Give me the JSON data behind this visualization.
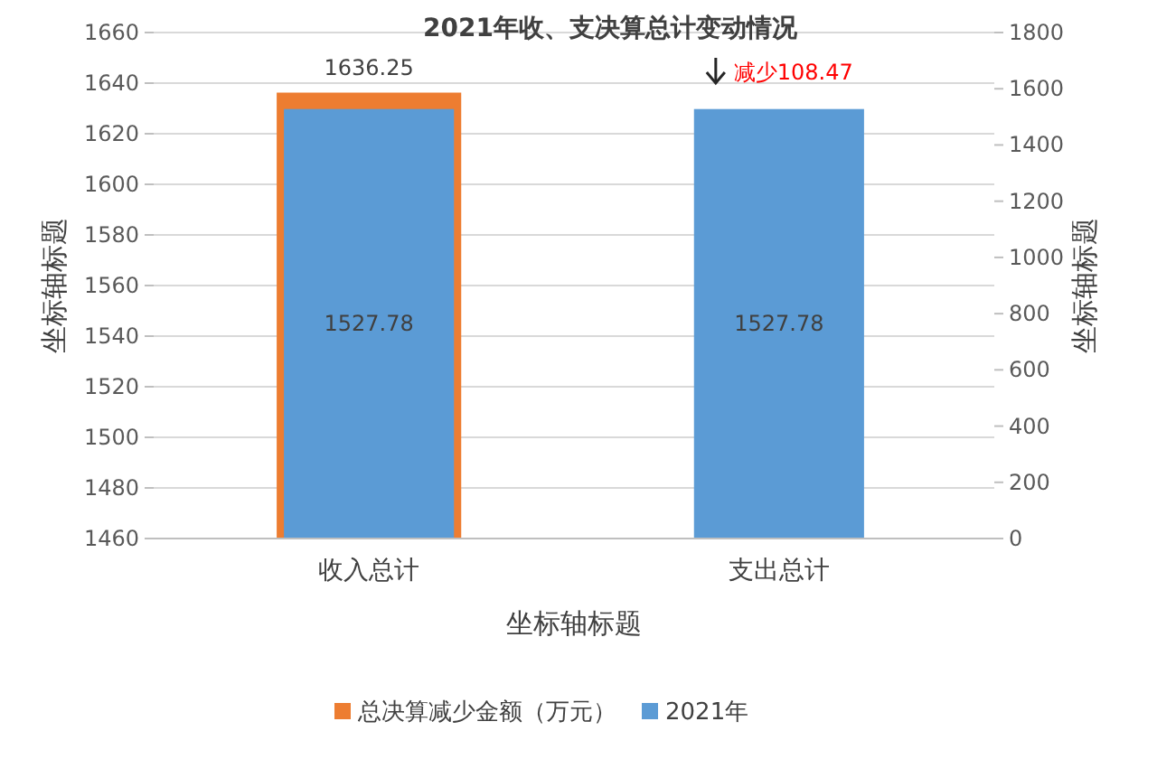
{
  "chart_data": {
    "type": "bar",
    "title": "2021年收、支决算总计变动情况",
    "xlabel": "坐标轴标题",
    "ylabel": "坐标轴标题",
    "y2label": "坐标轴标题",
    "categories": [
      "收入总计",
      "支出总计"
    ],
    "series": [
      {
        "name": "总决算减少金额（万元）",
        "color": "#ed7d31",
        "values": [
          1636.25,
          null
        ]
      },
      {
        "name": "2021年",
        "color": "#5b9bd5",
        "values": [
          1527.78,
          1527.78
        ],
        "axis": "y2"
      }
    ],
    "ylim": [
      1460,
      1660
    ],
    "yticks": [
      1460,
      1480,
      1500,
      1520,
      1540,
      1560,
      1580,
      1600,
      1620,
      1640,
      1660
    ],
    "y2lim": [
      0,
      1800
    ],
    "y2ticks": [
      0,
      200,
      400,
      600,
      800,
      1000,
      1200,
      1400,
      1600,
      1800
    ],
    "annotations": [
      "减少108.47"
    ],
    "data_labels": true,
    "grid": "y",
    "legend": "bottom"
  }
}
